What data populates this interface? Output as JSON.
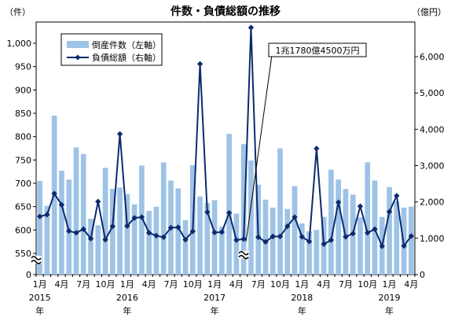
{
  "chart_data": {
    "type": "bar+line",
    "title": "件数・負債総額の推移",
    "left_unit": "（件）",
    "right_unit": "（億円）",
    "left_ticks": [
      "0",
      "550",
      "600",
      "650",
      "700",
      "750",
      "800",
      "850",
      "900",
      "950",
      "1,000"
    ],
    "right_ticks": [
      "0",
      "1,000",
      "2,000",
      "3,000",
      "4,000",
      "5,000",
      "6,000"
    ],
    "left_ylim": [
      0,
      1000
    ],
    "left_axis_break": [
      0,
      550
    ],
    "right_ylim": [
      0,
      6000
    ],
    "legend": {
      "bar": "倒産件数（左軸）",
      "line": "負債総額（右軸）",
      "position": "upper-left"
    },
    "annotation": "1兆1780億4500万円",
    "annotation_point_index": 28,
    "x_ticks": [
      {
        "index": 0,
        "month": "1月",
        "year": "2015",
        "nen": "年"
      },
      {
        "index": 3,
        "month": "4月"
      },
      {
        "index": 6,
        "month": "7月"
      },
      {
        "index": 9,
        "month": "10月"
      },
      {
        "index": 12,
        "month": "1月",
        "year": "2016",
        "nen": "年"
      },
      {
        "index": 15,
        "month": "4月"
      },
      {
        "index": 18,
        "month": "7月"
      },
      {
        "index": 21,
        "month": "10月"
      },
      {
        "index": 24,
        "month": "1月",
        "year": "2017",
        "nen": "年"
      },
      {
        "index": 27,
        "month": "4月"
      },
      {
        "index": 30,
        "month": "7月"
      },
      {
        "index": 33,
        "month": "10月"
      },
      {
        "index": 36,
        "month": "1月",
        "year": "2018",
        "nen": "年"
      },
      {
        "index": 39,
        "month": "4月"
      },
      {
        "index": 42,
        "month": "7月"
      },
      {
        "index": 45,
        "month": "10月"
      },
      {
        "index": 48,
        "month": "1月",
        "year": "2019",
        "nen": "年"
      },
      {
        "index": 51,
        "month": "4月"
      }
    ],
    "series": [
      {
        "name": "倒産件数（左軸）",
        "kind": "bar",
        "color": "#9dc3e6",
        "values": [
          705,
          652,
          845,
          727,
          708,
          777,
          763,
          624,
          610,
          733,
          688,
          691,
          677,
          655,
          738,
          641,
          650,
          745,
          706,
          689,
          621,
          739,
          672,
          658,
          664,
          607,
          806,
          635,
          784,
          749,
          697,
          665,
          648,
          775,
          645,
          694,
          614,
          597,
          600,
          628,
          729,
          708,
          688,
          676,
          627,
          745,
          706,
          628,
          692,
          661,
          648,
          650
        ]
      },
      {
        "name": "負債総額（右軸）",
        "kind": "line",
        "color": "#0d2a6e",
        "values": [
          1600,
          1650,
          2230,
          1920,
          1200,
          1150,
          1250,
          990,
          2010,
          960,
          1330,
          3870,
          1340,
          1560,
          1580,
          1150,
          1070,
          1030,
          1290,
          1300,
          960,
          1190,
          5800,
          1720,
          1160,
          1170,
          1700,
          950,
          980,
          6800,
          1030,
          900,
          1050,
          1050,
          1330,
          1580,
          1040,
          910,
          3470,
          840,
          950,
          1990,
          1040,
          1130,
          1880,
          1150,
          1250,
          780,
          1730,
          2170,
          790,
          1060
        ]
      }
    ]
  }
}
